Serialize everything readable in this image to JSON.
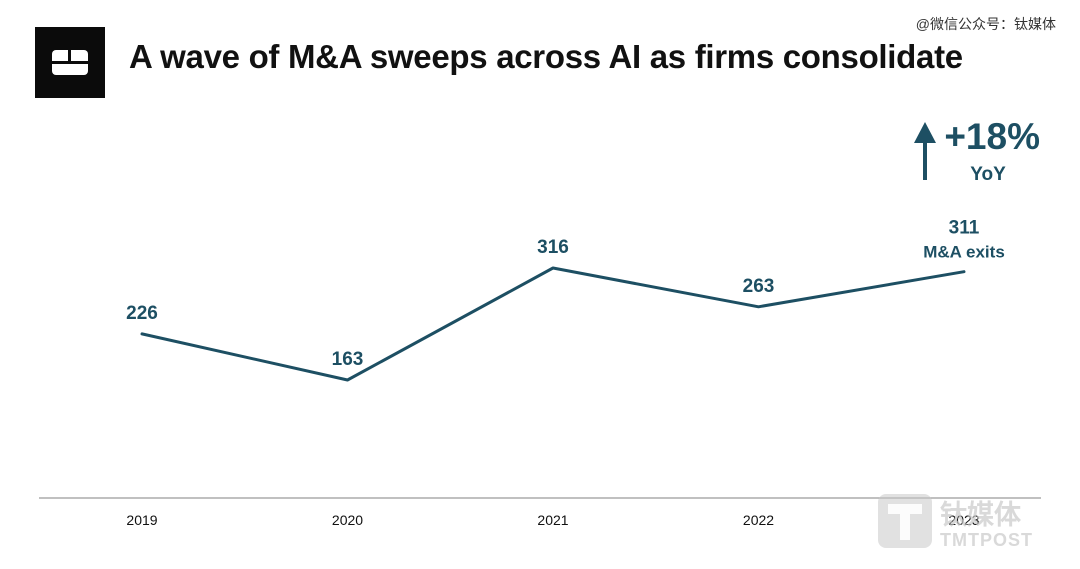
{
  "header": {
    "title": "A wave of M&A sweeps across AI as firms consolidate",
    "watermark_text": "@微信公众号：钛媒体"
  },
  "brand_watermark": {
    "cn": "钛媒体",
    "en": "TMTPOST"
  },
  "annotation": {
    "change": "+18%",
    "change_unit": "YoY",
    "last_value_label": "M&A exits"
  },
  "colors": {
    "series": "#1d4f63",
    "axis": "#9a9a9a"
  },
  "chart_data": {
    "type": "line",
    "title": "A wave of M&A sweeps across AI as firms consolidate",
    "xlabel": "",
    "ylabel": "",
    "x": [
      "2019",
      "2020",
      "2021",
      "2022",
      "2023"
    ],
    "series": [
      {
        "values": [
          226,
          163,
          316,
          263,
          311
        ]
      }
    ],
    "ylim": [
      0,
      400
    ],
    "grid": false,
    "legend": "none"
  }
}
